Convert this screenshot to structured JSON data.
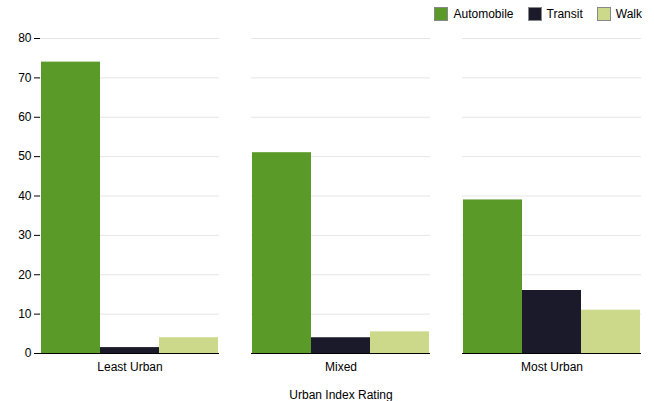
{
  "chart_data": {
    "type": "bar",
    "xlabel": "Urban Index Rating",
    "categories": [
      "Least Urban",
      "Mixed",
      "Most Urban"
    ],
    "series": [
      {
        "name": "Automobile",
        "color": "#5a9a28",
        "values": [
          74,
          51,
          39
        ]
      },
      {
        "name": "Transit",
        "color": "#1a1a2a",
        "values": [
          1.5,
          4,
          16
        ]
      },
      {
        "name": "Walk",
        "color": "#ccd98a",
        "values": [
          4,
          5.5,
          11
        ]
      }
    ],
    "ylim": [
      0,
      80
    ],
    "yticks": [
      0,
      10,
      20,
      30,
      40,
      50,
      60,
      70,
      80
    ],
    "grid": true,
    "legend": "upper right"
  }
}
